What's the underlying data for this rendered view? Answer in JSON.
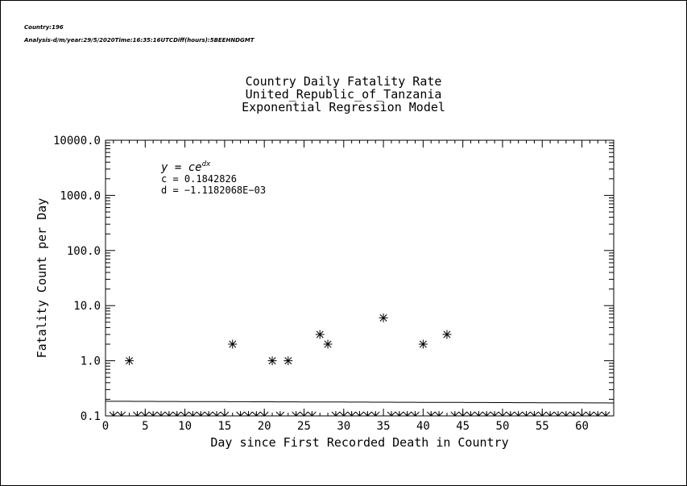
{
  "header": {
    "country_line": "Country:196",
    "analysis_line": "Analysis-d/m/year:29/5/2020Time:16:35:16UTCDiff(hours):5BEEHNDGMT"
  },
  "chart_data": {
    "type": "scatter",
    "title": [
      "Country Daily Fatality Rate",
      "United_Republic_of_Tanzania",
      "Exponential Regression Model"
    ],
    "xlabel": "Day since First Recorded Death in Country",
    "ylabel": "Fatality Count per Day",
    "xlim": [
      0,
      64
    ],
    "ylim": [
      0.1,
      10000.0
    ],
    "yscale": "log",
    "x_ticks": [
      "0",
      "5",
      "10",
      "15",
      "20",
      "25",
      "30",
      "35",
      "40",
      "45",
      "50",
      "55",
      "60"
    ],
    "y_ticks": [
      "0.1",
      "1.0",
      "10.0",
      "100.0",
      "1000.0",
      "10000.0"
    ],
    "grid": false,
    "marker": "asterisk",
    "points": {
      "x": [
        3,
        16,
        21,
        23,
        27,
        28,
        35,
        40,
        43
      ],
      "y": [
        1,
        2,
        1,
        1,
        3,
        2,
        6,
        2,
        3
      ]
    },
    "zero_days": [
      1,
      2,
      4,
      5,
      6,
      7,
      8,
      9,
      10,
      11,
      12,
      13,
      14,
      15,
      17,
      18,
      19,
      20,
      22,
      24,
      25,
      26,
      29,
      30,
      31,
      32,
      33,
      34,
      36,
      37,
      38,
      39,
      41,
      42,
      44,
      45,
      46,
      47,
      48,
      49,
      50,
      51,
      52,
      53,
      54,
      55,
      56,
      57,
      58,
      59,
      60,
      61,
      62,
      63
    ],
    "fit": {
      "c": 0.1842826,
      "d": -0.0011182068,
      "formula": "y = ce",
      "formula_exp": "dx",
      "c_label": "c = 0.1842826",
      "d_label": "d = −1.1182068E−03"
    }
  }
}
